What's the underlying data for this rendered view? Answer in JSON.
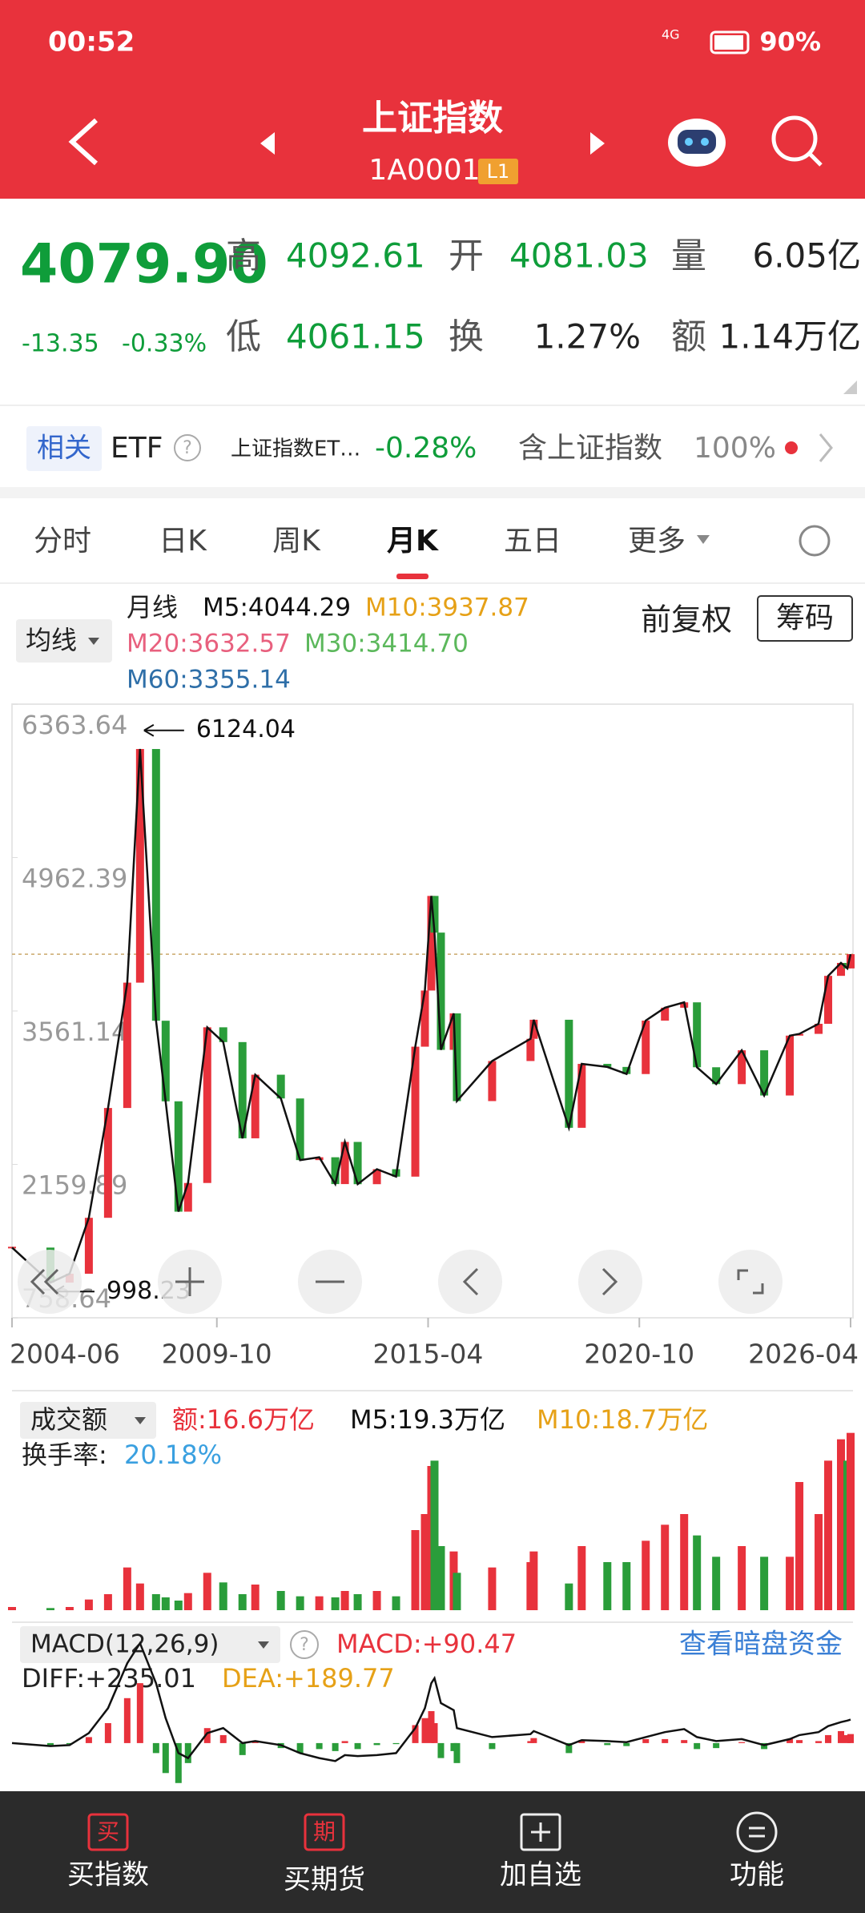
{
  "status_bar": {
    "time": "00:52",
    "network": "4G",
    "battery": "90%"
  },
  "header": {
    "title": "上证指数",
    "code": "1A0001",
    "badge": "L1"
  },
  "quote": {
    "price": "4079.90",
    "change": "-13.35",
    "change_pct": "-0.33%",
    "fields": [
      {
        "label": "高",
        "value": "4092.61"
      },
      {
        "label": "开",
        "value": "4081.03"
      },
      {
        "label": "量",
        "value": "6.05亿"
      },
      {
        "label": "低",
        "value": "4061.15"
      },
      {
        "label": "换",
        "value": "1.27%"
      },
      {
        "label": "额",
        "value": "1.14万亿"
      }
    ]
  },
  "related": {
    "tag": "相关",
    "etf": "ETF",
    "help": "?",
    "fund": "上证指数ET…",
    "fund_change": "-0.28%",
    "holding_label": "含上证指数",
    "holding": "100%"
  },
  "tabs": [
    "分时",
    "日K",
    "周K",
    "月K",
    "五日",
    "更多"
  ],
  "chart_legend": {
    "ma_button": "均线",
    "period": "月线",
    "ma": [
      {
        "text": "M5:4044.29",
        "color": "#111111"
      },
      {
        "text": "M10:3937.87",
        "color": "#e6a117"
      },
      {
        "text": "M20:3632.57",
        "color": "#e8607e"
      },
      {
        "text": "M30:3414.70",
        "color": "#5cb85c"
      },
      {
        "text": "M60:3355.14",
        "color": "#2f6fa8"
      }
    ],
    "adjust": "前复权",
    "chips": "筹码"
  },
  "chart_data": [
    {
      "type": "candlestick",
      "up_color": "#e8323c",
      "down_color": "#2a9d3a",
      "x": [
        "2004-06",
        "2005-06",
        "2005-12",
        "2006-06",
        "2006-12",
        "2007-06",
        "2007-10",
        "2008-03",
        "2008-06",
        "2008-10",
        "2009-01",
        "2009-07",
        "2009-12",
        "2010-06",
        "2010-10",
        "2011-06",
        "2011-12",
        "2012-06",
        "2012-11",
        "2013-02",
        "2013-06",
        "2013-12",
        "2014-06",
        "2014-12",
        "2015-03",
        "2015-05",
        "2015-06",
        "2015-08",
        "2015-12",
        "2016-01",
        "2016-12",
        "2017-12",
        "2018-01",
        "2018-12",
        "2019-04",
        "2019-12",
        "2020-06",
        "2020-12",
        "2021-06",
        "2021-12",
        "2022-04",
        "2022-10",
        "2023-06",
        "2024-01",
        "2024-09",
        "2024-12",
        "2025-06",
        "2025-09",
        "2026-01",
        "2026-03",
        "2026-04"
      ],
      "values": [
        1400,
        1080,
        1161,
        1672,
        2675,
        3820,
        5954,
        3472,
        2736,
        1728,
        1990,
        3412,
        3277,
        2398,
        2979,
        2762,
        2199,
        2225,
        1980,
        2365,
        1979,
        2116,
        2048,
        3235,
        3748,
        4612,
        4277,
        3206,
        3539,
        2738,
        3104,
        3307,
        3481,
        2494,
        3078,
        3050,
        2985,
        3473,
        3591,
        3640,
        3047,
        2893,
        3202,
        2789,
        3336,
        3352,
        3444,
        3882,
        4000,
        3950,
        4079.9
      ],
      "xlim": [
        "2004-06",
        "2026-04"
      ],
      "xticks": [
        "2004-06",
        "2009-10",
        "2015-04",
        "2020-10",
        "2026-04"
      ],
      "ylim": [
        758.64,
        6363.64
      ],
      "yticks": [
        6363.64,
        4962.39,
        3561.14,
        2159.89,
        758.64
      ],
      "annotations": [
        {
          "x": "2007-10",
          "value": 6124.04
        },
        {
          "x": "2005-06",
          "value": 998.23
        }
      ]
    },
    {
      "type": "bar",
      "title": "成交额",
      "legend": [
        {
          "text": "额:16.6万亿",
          "color": "#e8323c"
        },
        {
          "text": "M5:19.3万亿",
          "color": "#111111"
        },
        {
          "text": "M10:18.7万亿",
          "color": "#e6a117"
        }
      ],
      "turnover_label": "换手率:",
      "turnover": "20.18%",
      "values": [
        0.3,
        0.2,
        0.3,
        1.0,
        1.5,
        4.0,
        2.5,
        1.5,
        1.2,
        0.9,
        1.6,
        3.5,
        2.6,
        1.5,
        2.4,
        1.8,
        1.3,
        1.3,
        1.2,
        1.8,
        1.5,
        1.8,
        1.3,
        7.5,
        9.0,
        13.5,
        14.0,
        6.0,
        5.5,
        3.5,
        4.0,
        4.5,
        5.5,
        2.5,
        6.0,
        4.5,
        4.5,
        6.5,
        8.0,
        9.0,
        7.0,
        5.0,
        6.0,
        5.0,
        5.0,
        12.0,
        9.0,
        14.0,
        16.0,
        14.0,
        16.6
      ],
      "ylim": [
        0,
        18
      ]
    },
    {
      "type": "macd",
      "title": "MACD(12,26,9)",
      "help": "?",
      "macd_label": "MACD:+90.47",
      "link": "查看暗盘资金",
      "diff_label": "DIFF:+235.01",
      "dea_label": "DEA:+189.77",
      "values": [
        0,
        -20,
        -10,
        60,
        200,
        450,
        600,
        -100,
        -300,
        -400,
        -200,
        150,
        80,
        -120,
        20,
        -50,
        -100,
        -60,
        -80,
        20,
        -60,
        -20,
        -10,
        180,
        250,
        320,
        200,
        -150,
        -80,
        -200,
        -60,
        20,
        50,
        -100,
        30,
        -20,
        -30,
        40,
        40,
        30,
        -60,
        -50,
        10,
        -60,
        40,
        30,
        20,
        80,
        120,
        80,
        90.47
      ],
      "diff": [
        0,
        -30,
        -20,
        100,
        350,
        800,
        1000,
        600,
        250,
        -100,
        -150,
        100,
        150,
        0,
        20,
        -20,
        -100,
        -150,
        -180,
        -120,
        -130,
        -120,
        -100,
        150,
        350,
        600,
        650,
        400,
        330,
        150,
        60,
        90,
        120,
        -20,
        30,
        20,
        10,
        60,
        110,
        140,
        60,
        20,
        40,
        -20,
        40,
        80,
        110,
        170,
        210,
        225,
        235.01
      ],
      "ylim": [
        -450,
        1050
      ]
    }
  ],
  "nav": [
    {
      "icon": "买",
      "label": "买指数"
    },
    {
      "icon": "期",
      "label": "买期货"
    },
    {
      "label": "加自选"
    },
    {
      "label": "功能"
    }
  ]
}
